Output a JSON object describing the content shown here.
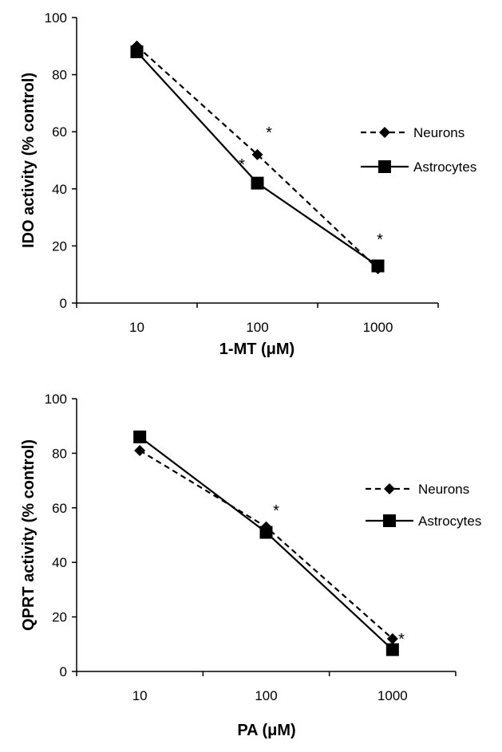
{
  "chart_data": [
    {
      "type": "line",
      "xlabel": "1-MT (μM)",
      "ylabel": "IDO activity (% control)",
      "categories": [
        "10",
        "100",
        "1000"
      ],
      "ylim": [
        0,
        100
      ],
      "yticks": [
        0,
        20,
        40,
        60,
        80,
        100
      ],
      "legend_position": "right",
      "series": [
        {
          "name": "Neurons",
          "marker": "diamond",
          "style": "dashed",
          "values": [
            90,
            52,
            12
          ]
        },
        {
          "name": "Astrocytes",
          "marker": "square",
          "style": "solid",
          "values": [
            88,
            42,
            13
          ]
        }
      ],
      "annotations": [
        {
          "text": "*",
          "category": "100",
          "near": "Neurons"
        },
        {
          "text": "*",
          "category": "100",
          "near": "Astrocytes"
        },
        {
          "text": "*",
          "category": "1000",
          "near": "Astrocytes"
        }
      ]
    },
    {
      "type": "line",
      "xlabel": "PA (μM)",
      "ylabel": "QPRT activity (% control)",
      "categories": [
        "10",
        "100",
        "1000"
      ],
      "ylim": [
        0,
        100
      ],
      "yticks": [
        0,
        20,
        40,
        60,
        80,
        100
      ],
      "legend_position": "right",
      "series": [
        {
          "name": "Neurons",
          "marker": "diamond",
          "style": "dashed",
          "values": [
            81,
            53,
            12
          ]
        },
        {
          "name": "Astrocytes",
          "marker": "square",
          "style": "solid",
          "values": [
            86,
            51,
            8
          ]
        }
      ],
      "annotations": [
        {
          "text": "*",
          "category": "100",
          "near": "Neurons"
        },
        {
          "text": "*",
          "category": "1000",
          "near": "Neurons"
        }
      ]
    }
  ]
}
